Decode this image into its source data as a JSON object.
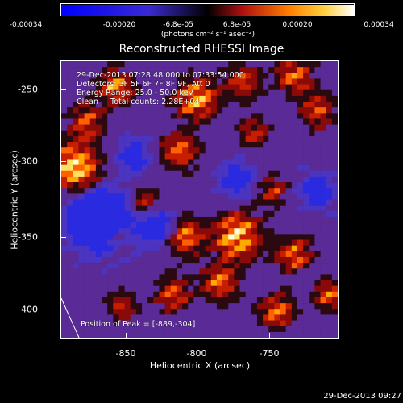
{
  "title": "Reconstructed RHESSI Image",
  "colorbar": {
    "tick_labels": [
      "-0.00034",
      "-0.00020",
      "-6.8e-05",
      "6.8e-05",
      "0.00020",
      "0.00034"
    ],
    "tick_values": [
      -0.00034,
      -0.0002,
      -6.8e-05,
      6.8e-05,
      0.0002,
      0.00034
    ],
    "range": [
      -0.00034,
      0.00034
    ],
    "unit_label": "(photons cm⁻² s⁻¹ asec⁻²)"
  },
  "annotations": {
    "time_range": "29-Dec-2013 07:28:48.000 to 07:33:54.000",
    "detectors": "Detectors: 3F 5F 6F 7F 8F 9F, Att 0",
    "energy": "Energy Range: 25.0 - 50.0 keV",
    "method": "Clean     Total counts: 2.28E+04",
    "peak": "Position of Peak = [-889,-304]"
  },
  "axes": {
    "xlabel": "Heliocentric X (arcsec)",
    "ylabel": "Heliocentric Y (arcsec)",
    "xticks": [
      "-850",
      "-800",
      "-750"
    ],
    "xtick_values": [
      -850,
      -800,
      -750
    ],
    "yticks": [
      "-250",
      "-300",
      "-350",
      "-400"
    ],
    "ytick_values": [
      -250,
      -300,
      -350,
      -400
    ],
    "xlim": [
      -890,
      -795
    ],
    "ylim": [
      -420,
      -230
    ]
  },
  "timestamp": "29-Dec-2013 09:27",
  "colors": {
    "negative": "#1414ff",
    "neutral": "#5a2a96",
    "positive_low": "#c81e00",
    "positive_mid": "#ff9600",
    "positive_high": "#ffffd8"
  }
}
